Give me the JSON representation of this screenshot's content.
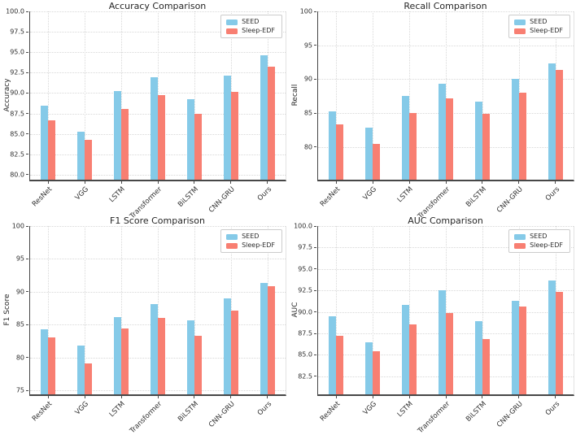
{
  "figure": {
    "background": "#ffffff"
  },
  "colors": {
    "series": [
      "#85CAE8",
      "#F87F72"
    ],
    "grid": "#d8d8d8",
    "axis": "#474747",
    "text": "#262626",
    "legend_border": "#cccccc"
  },
  "chart_data": [
    {
      "type": "bar",
      "title": "Accuracy Comparison",
      "ylabel": "Accuracy",
      "xlabel": "",
      "grid": "dotted",
      "legend_position": "upper right",
      "categories": [
        "ResNet",
        "VGG",
        "LSTM",
        "Transformer",
        "BiLSTM",
        "CNN-GRU",
        "Ours"
      ],
      "yticks": [
        "80.0",
        "82.5",
        "85.0",
        "87.5",
        "90.0",
        "92.5",
        "95.0",
        "97.5",
        "100.0"
      ],
      "ylim": [
        79.4,
        100
      ],
      "series": [
        {
          "name": "SEED",
          "values": [
            88.5,
            85.3,
            90.2,
            91.9,
            89.3,
            92.1,
            94.6
          ]
        },
        {
          "name": "Sleep-EDF",
          "values": [
            86.7,
            84.3,
            88.1,
            89.8,
            87.5,
            90.1,
            93.2
          ]
        }
      ]
    },
    {
      "type": "bar",
      "title": "Recall Comparison",
      "ylabel": "Recall",
      "xlabel": "",
      "grid": "dotted",
      "legend_position": "upper right",
      "categories": [
        "ResNet",
        "VGG",
        "LSTM",
        "Transformer",
        "BiLSTM",
        "CNN-GRU",
        "Ours"
      ],
      "yticks": [
        "80",
        "85",
        "90",
        "95",
        "100"
      ],
      "ylim": [
        75.2,
        100
      ],
      "series": [
        {
          "name": "SEED",
          "values": [
            85.3,
            82.9,
            87.5,
            89.3,
            86.7,
            90.0,
            92.3
          ]
        },
        {
          "name": "Sleep-EDF",
          "values": [
            83.4,
            80.5,
            85.0,
            87.2,
            84.9,
            88.0,
            91.4
          ]
        }
      ]
    },
    {
      "type": "bar",
      "title": "F1 Score Comparison",
      "ylabel": "F1 Score",
      "xlabel": "",
      "grid": "dotted",
      "legend_position": "upper right",
      "categories": [
        "ResNet",
        "VGG",
        "LSTM",
        "Transformer",
        "BiLSTM",
        "CNN-GRU",
        "Ours"
      ],
      "yticks": [
        "75",
        "80",
        "85",
        "90",
        "95",
        "100"
      ],
      "ylim": [
        74.4,
        100
      ],
      "series": [
        {
          "name": "SEED",
          "values": [
            84.3,
            81.8,
            86.2,
            88.1,
            85.6,
            89.0,
            91.4
          ]
        },
        {
          "name": "Sleep-EDF",
          "values": [
            83.0,
            79.1,
            84.4,
            86.0,
            83.3,
            87.2,
            90.8
          ]
        }
      ]
    },
    {
      "type": "bar",
      "title": "AUC Comparison",
      "ylabel": "AUC",
      "xlabel": "",
      "grid": "dotted",
      "legend_position": "upper right",
      "categories": [
        "ResNet",
        "VGG",
        "LSTM",
        "Transformer",
        "BiLSTM",
        "CNN-GRU",
        "Ours"
      ],
      "yticks": [
        "82.5",
        "85.0",
        "87.5",
        "90.0",
        "92.5",
        "95.0",
        "97.5",
        "100.0"
      ],
      "ylim": [
        80.4,
        100
      ],
      "series": [
        {
          "name": "SEED",
          "values": [
            89.5,
            86.5,
            90.8,
            92.5,
            88.9,
            91.3,
            93.7
          ]
        },
        {
          "name": "Sleep-EDF",
          "values": [
            87.2,
            85.4,
            88.5,
            89.9,
            86.8,
            90.6,
            92.3
          ]
        }
      ]
    }
  ]
}
